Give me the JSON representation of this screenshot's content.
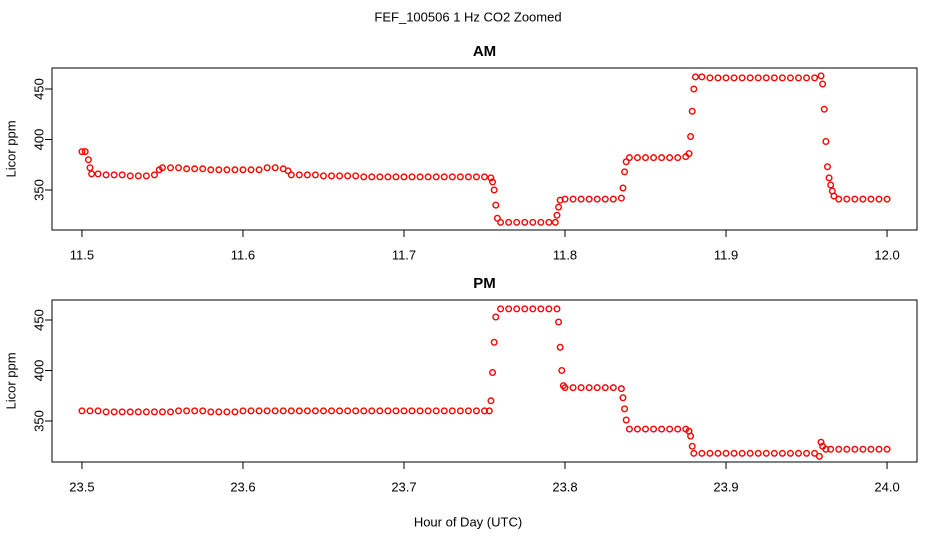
{
  "title": "FEF_100506  1 Hz CO2 Zoomed",
  "xlabel": "Hour of Day (UTC)",
  "chart_data": [
    {
      "type": "scatter",
      "title": "AM",
      "ylabel": "Licor ppm",
      "color": "#ff0000",
      "xlim": [
        11.4814,
        12.0186
      ],
      "ylim": [
        310.4,
        470.8
      ],
      "xticks": [
        11.5,
        11.6,
        11.7,
        11.8,
        11.9,
        {
          "value": 12,
          "label": "12.0"
        }
      ],
      "yticks": [
        350,
        400,
        450
      ],
      "x": [
        11.5,
        11.502,
        11.504,
        11.505,
        11.506,
        11.51,
        11.515,
        11.52,
        11.525,
        11.53,
        11.535,
        11.54,
        11.545,
        11.548,
        11.55,
        11.555,
        11.56,
        11.565,
        11.57,
        11.575,
        11.58,
        11.585,
        11.59,
        11.595,
        11.6,
        11.605,
        11.61,
        11.615,
        11.62,
        11.625,
        11.628,
        11.63,
        11.635,
        11.64,
        11.645,
        11.65,
        11.655,
        11.66,
        11.665,
        11.67,
        11.675,
        11.68,
        11.685,
        11.69,
        11.695,
        11.7,
        11.705,
        11.71,
        11.715,
        11.72,
        11.725,
        11.73,
        11.735,
        11.74,
        11.745,
        11.75,
        11.754,
        11.755,
        11.756,
        11.757,
        11.758,
        11.76,
        11.765,
        11.77,
        11.775,
        11.78,
        11.785,
        11.79,
        11.794,
        11.795,
        11.796,
        11.797,
        11.8,
        11.805,
        11.81,
        11.815,
        11.82,
        11.825,
        11.83,
        11.835,
        11.836,
        11.837,
        11.838,
        11.84,
        11.845,
        11.85,
        11.855,
        11.86,
        11.865,
        11.87,
        11.875,
        11.877,
        11.878,
        11.879,
        11.88,
        11.881,
        11.885,
        11.89,
        11.895,
        11.9,
        11.905,
        11.91,
        11.915,
        11.92,
        11.925,
        11.93,
        11.935,
        11.94,
        11.945,
        11.95,
        11.955,
        11.959,
        11.96,
        11.961,
        11.962,
        11.963,
        11.964,
        11.965,
        11.966,
        11.967,
        11.97,
        11.975,
        11.98,
        11.985,
        11.99,
        11.995,
        12.0
      ],
      "values": [
        388,
        388,
        380,
        372,
        366,
        366,
        365,
        365,
        365,
        364,
        364,
        364,
        365,
        370,
        372,
        372,
        372,
        371,
        371,
        371,
        370,
        370,
        370,
        370,
        370,
        370,
        370,
        372,
        372,
        371,
        369,
        365,
        365,
        365,
        365,
        364,
        364,
        364,
        364,
        364,
        363,
        363,
        363,
        363,
        363,
        363,
        363,
        363,
        363,
        363,
        363,
        363,
        363,
        363,
        363,
        363,
        362,
        358,
        350,
        335,
        322,
        318,
        318,
        318,
        318,
        318,
        318,
        318,
        318,
        325,
        333,
        340,
        341,
        341,
        341,
        341,
        341,
        341,
        341,
        342,
        352,
        368,
        378,
        382,
        382,
        382,
        382,
        382,
        382,
        382,
        383,
        386,
        403,
        428,
        450,
        462,
        462,
        461,
        461,
        461,
        461,
        461,
        461,
        461,
        461,
        461,
        461,
        461,
        461,
        461,
        461,
        463,
        455,
        430,
        398,
        373,
        362,
        355,
        349,
        344,
        341,
        341,
        341,
        341,
        341,
        341,
        341
      ]
    },
    {
      "type": "scatter",
      "title": "PM",
      "ylabel": "Licor ppm",
      "color": "#ff0000",
      "xlim": [
        23.4814,
        24.0186
      ],
      "ylim": [
        309.4,
        469.8
      ],
      "xticks": [
        23.5,
        23.6,
        23.7,
        23.8,
        23.9,
        {
          "value": 24,
          "label": "24.0"
        }
      ],
      "yticks": [
        350,
        400,
        450
      ],
      "x": [
        23.5,
        23.505,
        23.51,
        23.515,
        23.52,
        23.525,
        23.53,
        23.535,
        23.54,
        23.545,
        23.55,
        23.555,
        23.56,
        23.565,
        23.57,
        23.575,
        23.58,
        23.585,
        23.59,
        23.595,
        23.6,
        23.605,
        23.61,
        23.615,
        23.62,
        23.625,
        23.63,
        23.635,
        23.64,
        23.645,
        23.65,
        23.655,
        23.66,
        23.665,
        23.67,
        23.675,
        23.68,
        23.685,
        23.69,
        23.695,
        23.7,
        23.705,
        23.71,
        23.715,
        23.72,
        23.725,
        23.73,
        23.735,
        23.74,
        23.745,
        23.75,
        23.753,
        23.754,
        23.755,
        23.756,
        23.757,
        23.76,
        23.765,
        23.77,
        23.775,
        23.78,
        23.785,
        23.79,
        23.795,
        23.796,
        23.797,
        23.798,
        23.799,
        23.8,
        23.805,
        23.81,
        23.815,
        23.82,
        23.825,
        23.83,
        23.835,
        23.836,
        23.837,
        23.838,
        23.84,
        23.845,
        23.85,
        23.855,
        23.86,
        23.865,
        23.87,
        23.875,
        23.877,
        23.878,
        23.879,
        23.88,
        23.885,
        23.89,
        23.895,
        23.9,
        23.905,
        23.91,
        23.915,
        23.92,
        23.925,
        23.93,
        23.935,
        23.94,
        23.945,
        23.95,
        23.955,
        23.958,
        23.959,
        23.96,
        23.962,
        23.965,
        23.97,
        23.975,
        23.98,
        23.985,
        23.99,
        23.995,
        24.0
      ],
      "values": [
        360,
        360,
        360,
        359,
        359,
        359,
        359,
        359,
        359,
        359,
        359,
        359,
        360,
        360,
        360,
        360,
        359,
        359,
        359,
        359,
        360,
        360,
        360,
        360,
        360,
        360,
        360,
        360,
        360,
        360,
        360,
        360,
        360,
        360,
        360,
        360,
        360,
        360,
        360,
        360,
        360,
        360,
        360,
        360,
        360,
        360,
        360,
        360,
        360,
        360,
        360,
        360,
        370,
        398,
        428,
        453,
        461,
        461,
        461,
        461,
        461,
        461,
        461,
        461,
        448,
        423,
        400,
        385,
        383,
        383,
        383,
        383,
        383,
        383,
        383,
        382,
        373,
        362,
        351,
        342,
        342,
        342,
        342,
        342,
        342,
        342,
        342,
        340,
        335,
        325,
        318,
        318,
        318,
        318,
        318,
        318,
        318,
        318,
        318,
        318,
        318,
        318,
        318,
        318,
        318,
        318,
        315,
        329,
        325,
        322,
        322,
        322,
        322,
        322,
        322,
        322,
        322,
        322
      ]
    }
  ]
}
